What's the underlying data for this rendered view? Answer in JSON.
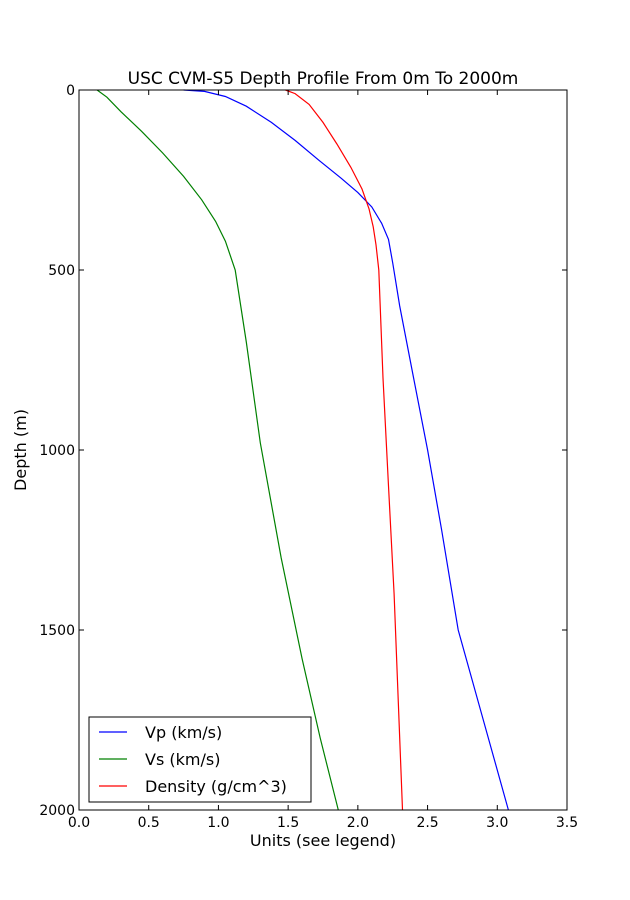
{
  "chart_data": {
    "type": "line",
    "title": "USC CVM-S5 Depth Profile From 0m To 2000m",
    "xlabel": "Units (see legend)",
    "ylabel": "Depth (m)",
    "xlim": [
      0.0,
      3.5
    ],
    "ylim": [
      2000,
      0
    ],
    "y_inverted": true,
    "grid": false,
    "legend_position": "lower-left",
    "xticks": [
      "0.0",
      "0.5",
      "1.0",
      "1.5",
      "2.0",
      "2.5",
      "3.0",
      "3.5"
    ],
    "yticks": [
      "0",
      "500",
      "1000",
      "1500",
      "2000"
    ],
    "series": [
      {
        "name": "Vp (km/s)",
        "color": "#0000ff",
        "points": [
          [
            0.75,
            0
          ],
          [
            0.9,
            4
          ],
          [
            1.05,
            18
          ],
          [
            1.2,
            45
          ],
          [
            1.38,
            90
          ],
          [
            1.55,
            140
          ],
          [
            1.72,
            195
          ],
          [
            1.88,
            245
          ],
          [
            2.0,
            285
          ],
          [
            2.1,
            325
          ],
          [
            2.17,
            370
          ],
          [
            2.22,
            415
          ],
          [
            2.25,
            480
          ],
          [
            2.3,
            600
          ],
          [
            2.4,
            800
          ],
          [
            2.5,
            1000
          ],
          [
            2.6,
            1220
          ],
          [
            2.72,
            1500
          ],
          [
            2.9,
            1750
          ],
          [
            3.08,
            2000
          ]
        ]
      },
      {
        "name": "Vs (km/s)",
        "color": "#008000",
        "points": [
          [
            0.13,
            0
          ],
          [
            0.2,
            20
          ],
          [
            0.3,
            60
          ],
          [
            0.45,
            115
          ],
          [
            0.6,
            175
          ],
          [
            0.75,
            240
          ],
          [
            0.88,
            305
          ],
          [
            0.98,
            365
          ],
          [
            1.05,
            420
          ],
          [
            1.12,
            500
          ],
          [
            1.2,
            700
          ],
          [
            1.3,
            980
          ],
          [
            1.45,
            1300
          ],
          [
            1.6,
            1580
          ],
          [
            1.73,
            1800
          ],
          [
            1.86,
            2000
          ]
        ]
      },
      {
        "name": "Density (g/cm^3)",
        "color": "#ff0000",
        "points": [
          [
            1.48,
            0
          ],
          [
            1.55,
            10
          ],
          [
            1.65,
            40
          ],
          [
            1.75,
            90
          ],
          [
            1.85,
            150
          ],
          [
            1.95,
            215
          ],
          [
            2.03,
            275
          ],
          [
            2.08,
            330
          ],
          [
            2.11,
            380
          ],
          [
            2.13,
            430
          ],
          [
            2.15,
            500
          ],
          [
            2.18,
            800
          ],
          [
            2.22,
            1100
          ],
          [
            2.26,
            1400
          ],
          [
            2.29,
            1700
          ],
          [
            2.32,
            2000
          ]
        ]
      }
    ]
  }
}
